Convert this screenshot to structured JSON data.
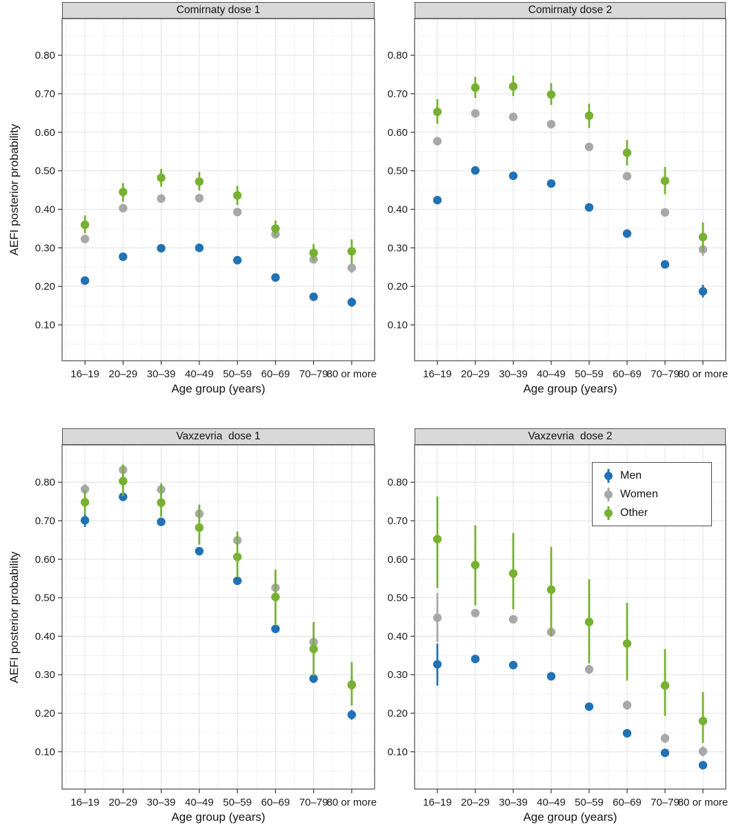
{
  "figure_type": "faceted-errorbar-scatter",
  "chart_data": [
    {
      "type": "scatter",
      "title": "Comirnaty dose 1",
      "xlabel": "Age group (years)",
      "ylabel": "AEFI posterior probability",
      "categories": [
        "16–19",
        "20–29",
        "30–39",
        "40–49",
        "50–59",
        "60–69",
        "70–79",
        "80 or more"
      ],
      "ytick_labels": [
        "0.10",
        "0.20",
        "0.30",
        "0.40",
        "0.50",
        "0.60",
        "0.70",
        "0.80"
      ],
      "ylim": [
        0.007,
        0.895
      ],
      "grid": true,
      "series": [
        {
          "name": "Men",
          "color": "#2171b5",
          "values": [
            0.215,
            0.277,
            0.299,
            0.3,
            0.268,
            0.223,
            0.173,
            0.159
          ],
          "ci_low": [
            0.206,
            0.271,
            0.294,
            0.294,
            0.262,
            0.217,
            0.166,
            0.147
          ],
          "ci_high": [
            0.224,
            0.283,
            0.305,
            0.306,
            0.274,
            0.229,
            0.18,
            0.171
          ]
        },
        {
          "name": "Women",
          "color": "#a8a8a8",
          "values": [
            0.323,
            0.403,
            0.428,
            0.429,
            0.393,
            0.335,
            0.27,
            0.248
          ],
          "ci_low": [
            0.313,
            0.397,
            0.423,
            0.424,
            0.388,
            0.329,
            0.263,
            0.235
          ],
          "ci_high": [
            0.333,
            0.409,
            0.434,
            0.435,
            0.399,
            0.341,
            0.277,
            0.262
          ]
        },
        {
          "name": "Other",
          "color": "#77b131",
          "values": [
            0.36,
            0.445,
            0.482,
            0.472,
            0.436,
            0.35,
            0.287,
            0.291
          ],
          "ci_low": [
            0.338,
            0.42,
            0.459,
            0.449,
            0.411,
            0.329,
            0.266,
            0.259
          ],
          "ci_high": [
            0.384,
            0.468,
            0.505,
            0.497,
            0.461,
            0.371,
            0.31,
            0.322
          ]
        }
      ]
    },
    {
      "type": "scatter",
      "title": "Comirnaty dose 2",
      "xlabel": "Age group (years)",
      "ylabel": "AEFI posterior probability",
      "categories": [
        "16–19",
        "20–29",
        "30–39",
        "40–49",
        "50–59",
        "60–69",
        "70–79",
        "80 or more"
      ],
      "ytick_labels": [
        "0.10",
        "0.20",
        "0.30",
        "0.40",
        "0.50",
        "0.60",
        "0.70",
        "0.80"
      ],
      "ylim": [
        0.007,
        0.895
      ],
      "grid": true,
      "series": [
        {
          "name": "Men",
          "color": "#2171b5",
          "values": [
            0.424,
            0.501,
            0.487,
            0.467,
            0.405,
            0.337,
            0.257,
            0.187
          ],
          "ci_low": [
            0.416,
            0.495,
            0.481,
            0.461,
            0.399,
            0.331,
            0.249,
            0.171
          ],
          "ci_high": [
            0.432,
            0.507,
            0.493,
            0.473,
            0.411,
            0.343,
            0.265,
            0.204
          ]
        },
        {
          "name": "Women",
          "color": "#a8a8a8",
          "values": [
            0.577,
            0.649,
            0.64,
            0.621,
            0.562,
            0.486,
            0.392,
            0.296
          ],
          "ci_low": [
            0.567,
            0.643,
            0.634,
            0.615,
            0.556,
            0.48,
            0.384,
            0.279
          ],
          "ci_high": [
            0.587,
            0.655,
            0.646,
            0.627,
            0.568,
            0.492,
            0.4,
            0.313
          ]
        },
        {
          "name": "Other",
          "color": "#77b131",
          "values": [
            0.653,
            0.716,
            0.719,
            0.698,
            0.643,
            0.547,
            0.474,
            0.328
          ],
          "ci_low": [
            0.622,
            0.689,
            0.694,
            0.671,
            0.611,
            0.514,
            0.439,
            0.29
          ],
          "ci_high": [
            0.686,
            0.744,
            0.747,
            0.728,
            0.674,
            0.58,
            0.51,
            0.366
          ]
        }
      ]
    },
    {
      "type": "scatter",
      "title": "Vaxzevria  dose 1",
      "xlabel": "Age group (years)",
      "ylabel": "AEFI posterior probability",
      "categories": [
        "16–19",
        "20–29",
        "30–39",
        "40–49",
        "50–59",
        "60–69",
        "70–79",
        "80 or more"
      ],
      "ytick_labels": [
        "0.10",
        "0.20",
        "0.30",
        "0.40",
        "0.50",
        "0.60",
        "0.70",
        "0.80"
      ],
      "ylim": [
        0.003,
        0.897
      ],
      "grid": true,
      "series": [
        {
          "name": "Men",
          "color": "#2171b5",
          "values": [
            0.701,
            0.762,
            0.697,
            0.621,
            0.544,
            0.419,
            0.29,
            0.196
          ],
          "ci_low": [
            0.684,
            0.754,
            0.689,
            0.612,
            0.535,
            0.409,
            0.28,
            0.183
          ],
          "ci_high": [
            0.718,
            0.77,
            0.705,
            0.63,
            0.553,
            0.429,
            0.3,
            0.209
          ]
        },
        {
          "name": "Women",
          "color": "#a8a8a8",
          "values": [
            0.782,
            0.832,
            0.781,
            0.718,
            0.649,
            0.526,
            0.385,
            0.275
          ],
          "ci_low": [
            0.769,
            0.82,
            0.766,
            0.705,
            0.636,
            0.511,
            0.369,
            0.256
          ],
          "ci_high": [
            0.795,
            0.845,
            0.796,
            0.731,
            0.662,
            0.541,
            0.401,
            0.294
          ]
        },
        {
          "name": "Other",
          "color": "#77b131",
          "values": [
            0.748,
            0.803,
            0.747,
            0.682,
            0.606,
            0.502,
            0.367,
            0.273
          ],
          "ci_low": [
            0.716,
            0.763,
            0.71,
            0.638,
            0.553,
            0.428,
            0.298,
            0.22
          ],
          "ci_high": [
            0.78,
            0.846,
            0.797,
            0.742,
            0.672,
            0.573,
            0.437,
            0.333
          ]
        }
      ]
    },
    {
      "type": "scatter",
      "title": "Vaxzevria  dose 2",
      "xlabel": "Age group (years)",
      "ylabel": "AEFI posterior probability",
      "categories": [
        "16–19",
        "20–29",
        "30–39",
        "40–49",
        "50–59",
        "60–69",
        "70–79",
        "80 or more"
      ],
      "ytick_labels": [
        "0.10",
        "0.20",
        "0.30",
        "0.40",
        "0.50",
        "0.60",
        "0.70",
        "0.80"
      ],
      "ylim": [
        0.003,
        0.897
      ],
      "grid": true,
      "legend_position": "top-right",
      "series": [
        {
          "name": "Men",
          "color": "#2171b5",
          "values": [
            0.327,
            0.341,
            0.325,
            0.296,
            0.217,
            0.148,
            0.097,
            0.065
          ],
          "ci_low": [
            0.272,
            0.332,
            0.316,
            0.287,
            0.208,
            0.139,
            0.088,
            0.056
          ],
          "ci_high": [
            0.381,
            0.35,
            0.334,
            0.305,
            0.226,
            0.157,
            0.106,
            0.074
          ]
        },
        {
          "name": "Women",
          "color": "#a8a8a8",
          "values": [
            0.448,
            0.46,
            0.444,
            0.411,
            0.314,
            0.221,
            0.135,
            0.101
          ],
          "ci_low": [
            0.385,
            0.45,
            0.434,
            0.399,
            0.302,
            0.209,
            0.123,
            0.088
          ],
          "ci_high": [
            0.512,
            0.47,
            0.454,
            0.423,
            0.326,
            0.233,
            0.147,
            0.114
          ]
        },
        {
          "name": "Other",
          "color": "#77b131",
          "values": [
            0.652,
            0.585,
            0.563,
            0.521,
            0.437,
            0.381,
            0.272,
            0.18
          ],
          "ci_low": [
            0.525,
            0.48,
            0.47,
            0.4,
            0.33,
            0.285,
            0.193,
            0.123
          ],
          "ci_high": [
            0.763,
            0.688,
            0.668,
            0.632,
            0.548,
            0.487,
            0.367,
            0.255
          ]
        }
      ]
    }
  ],
  "styles": {
    "accent_blue": "#2171b5",
    "accent_gray": "#a8a8a8",
    "accent_green": "#77b131",
    "header_bg": "#d9d9d9",
    "panel_border": "#565656",
    "grid_major": "#e3e3e3",
    "grid_minor": "#f2f2f2"
  }
}
